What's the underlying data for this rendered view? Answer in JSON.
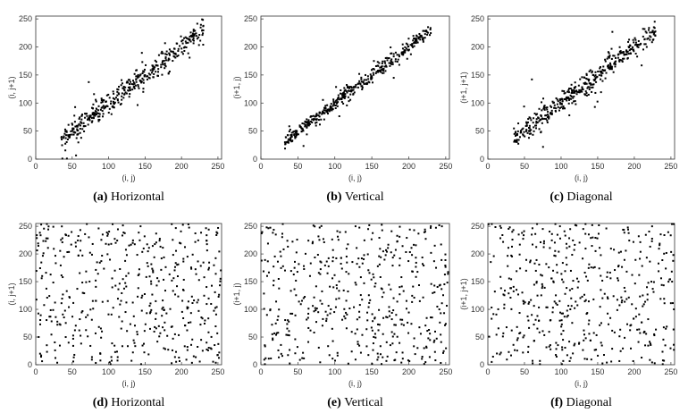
{
  "chart_data": [
    {
      "type": "scatter",
      "panel": "a",
      "caption_label": "(a)",
      "caption_text": "Horizontal",
      "xlabel": "(i, j)",
      "ylabel": "(i, j+1)",
      "xlim": [
        0,
        255
      ],
      "ylim": [
        0,
        255
      ],
      "xticks": [
        0,
        50,
        100,
        150,
        200,
        250
      ],
      "yticks": [
        0,
        50,
        100,
        150,
        200,
        250
      ],
      "pattern": "correlated",
      "n_points": 420,
      "x_range": [
        35,
        230
      ],
      "spread": 9,
      "outlier_spread": 30
    },
    {
      "type": "scatter",
      "panel": "b",
      "caption_label": "(b)",
      "caption_text": "Vertical",
      "xlabel": "(i, j)",
      "ylabel": "(i+1, j)",
      "xlim": [
        0,
        255
      ],
      "ylim": [
        0,
        255
      ],
      "xticks": [
        0,
        50,
        100,
        150,
        200,
        250
      ],
      "yticks": [
        0,
        50,
        100,
        150,
        200,
        250
      ],
      "pattern": "correlated",
      "n_points": 420,
      "x_range": [
        32,
        230
      ],
      "spread": 6,
      "outlier_spread": 18
    },
    {
      "type": "scatter",
      "panel": "c",
      "caption_label": "(c)",
      "caption_text": "Diagonal",
      "xlabel": "(i, j)",
      "ylabel": "(i+1, j+1)",
      "xlim": [
        0,
        255
      ],
      "ylim": [
        0,
        255
      ],
      "xticks": [
        0,
        50,
        100,
        150,
        200,
        250
      ],
      "yticks": [
        0,
        50,
        100,
        150,
        200,
        250
      ],
      "pattern": "correlated",
      "n_points": 420,
      "x_range": [
        35,
        230
      ],
      "spread": 10,
      "outlier_spread": 32
    },
    {
      "type": "scatter",
      "panel": "d",
      "caption_label": "(d)",
      "caption_text": "Horizontal",
      "xlabel": "(i, j)",
      "ylabel": "(i, j+1)",
      "xlim": [
        0,
        255
      ],
      "ylim": [
        0,
        255
      ],
      "xticks": [
        0,
        50,
        100,
        150,
        200,
        250
      ],
      "yticks": [
        0,
        50,
        100,
        150,
        200,
        250
      ],
      "pattern": "uniform",
      "n_points": 480,
      "x_range": [
        0,
        255
      ]
    },
    {
      "type": "scatter",
      "panel": "e",
      "caption_label": "(e)",
      "caption_text": "Vertical",
      "xlabel": "(i, j)",
      "ylabel": "(i+1, j)",
      "xlim": [
        0,
        255
      ],
      "ylim": [
        0,
        255
      ],
      "xticks": [
        0,
        50,
        100,
        150,
        200,
        250
      ],
      "yticks": [
        0,
        50,
        100,
        150,
        200,
        250
      ],
      "pattern": "uniform",
      "n_points": 480,
      "x_range": [
        0,
        255
      ]
    },
    {
      "type": "scatter",
      "panel": "f",
      "caption_label": "(f)",
      "caption_text": "Diagonal",
      "xlabel": "(i, j)",
      "ylabel": "(i+1, j+1)",
      "xlim": [
        0,
        255
      ],
      "ylim": [
        0,
        255
      ],
      "xticks": [
        0,
        50,
        100,
        150,
        200,
        250
      ],
      "yticks": [
        0,
        50,
        100,
        150,
        200,
        250
      ],
      "pattern": "uniform",
      "n_points": 480,
      "x_range": [
        0,
        255
      ]
    }
  ]
}
